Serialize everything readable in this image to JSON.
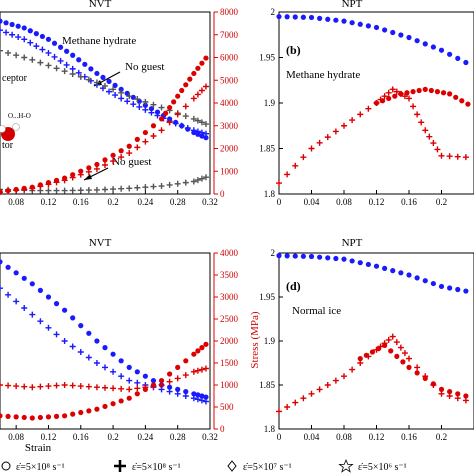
{
  "colors": {
    "blue": "#1a1aff",
    "red": "#dd0000",
    "gray": "#555555",
    "axis": "#000000"
  },
  "legend": [
    {
      "marker": "circle",
      "label": "ε̇=5×10⁸ s⁻¹"
    },
    {
      "marker": "plus",
      "label": "ε̇=5×10⁸ s⁻¹"
    },
    {
      "marker": "diamond",
      "label": "ε̇=5×10⁷ s⁻¹"
    },
    {
      "marker": "star",
      "label": "ε̇=5×10⁶ s⁻¹"
    }
  ],
  "chart_data": [
    {
      "type": "scatter",
      "title": "NVT",
      "xlim": [
        0.06,
        0.32
      ],
      "xticks": [
        "0.08",
        "0.12",
        "0.16",
        "0.2",
        "0.24",
        "0.28",
        "0.32"
      ],
      "y2label": "",
      "y2lim": [
        0,
        8000
      ],
      "y2ticks": [
        "0",
        "1000",
        "2000",
        "3000",
        "4000",
        "5000",
        "6000",
        "7000",
        "8000"
      ],
      "annotations": [
        "Methane hydrate",
        "No guest",
        "No guest",
        "ceptor",
        "tor",
        "O...H-O"
      ],
      "series": [
        {
          "color": "blue",
          "side": "left",
          "x": [
            0.06,
            0.09,
            0.12,
            0.15,
            0.18,
            0.21,
            0.24,
            0.27,
            0.3,
            0.32
          ],
          "y": [
            7600,
            7300,
            6800,
            6100,
            5300,
            4600,
            3900,
            3300,
            2700,
            2400
          ]
        },
        {
          "color": "blue",
          "side": "left",
          "x": [
            0.06,
            0.09,
            0.12,
            0.15,
            0.18,
            0.21,
            0.24,
            0.27,
            0.3,
            0.32
          ],
          "y": [
            7200,
            6800,
            6200,
            5500,
            4800,
            4200,
            3700,
            3200,
            2800,
            2600
          ]
        },
        {
          "color": "gray",
          "side": "left",
          "x": [
            0.06,
            0.1,
            0.14,
            0.18,
            0.22,
            0.26,
            0.3,
            0.32
          ],
          "y": [
            6300,
            5900,
            5400,
            4900,
            4300,
            3800,
            3300,
            3000
          ]
        },
        {
          "color": "gray",
          "side": "right",
          "x": [
            0.06,
            0.1,
            0.14,
            0.18,
            0.22,
            0.26,
            0.3,
            0.32
          ],
          "y": [
            200,
            150,
            150,
            180,
            250,
            350,
            550,
            800
          ]
        },
        {
          "color": "red",
          "side": "right",
          "x": [
            0.06,
            0.1,
            0.14,
            0.18,
            0.22,
            0.26,
            0.28,
            0.3,
            0.32
          ],
          "y": [
            100,
            300,
            700,
            1300,
            2100,
            3300,
            4300,
            5300,
            6200
          ]
        },
        {
          "color": "red",
          "side": "right",
          "x": [
            0.06,
            0.1,
            0.14,
            0.18,
            0.22,
            0.26,
            0.3,
            0.32
          ],
          "y": [
            80,
            250,
            600,
            1100,
            1800,
            2800,
            4200,
            4900
          ]
        }
      ]
    },
    {
      "type": "scatter",
      "title": "NPT",
      "label": "(b)",
      "xlim": [
        0,
        0.24
      ],
      "xticks": [
        "0",
        "0.04",
        "0.08",
        "0.12",
        "0.16",
        "0.2"
      ],
      "ylim": [
        1.8,
        2.0
      ],
      "yticks": [
        "1.8",
        "1.85",
        "1.9",
        "1.95",
        "2"
      ],
      "annotations": [
        "Methane hydrate"
      ],
      "series": [
        {
          "color": "blue",
          "x": [
            0,
            0.04,
            0.08,
            0.12,
            0.16,
            0.2,
            0.24
          ],
          "y": [
            1.995,
            1.994,
            1.99,
            1.983,
            1.972,
            1.958,
            1.94
          ]
        },
        {
          "color": "red",
          "x": [
            0,
            0.04,
            0.08,
            0.12,
            0.14,
            0.16,
            0.18,
            0.2,
            0.24
          ],
          "y": [
            1.812,
            1.85,
            1.875,
            1.9,
            1.915,
            1.905,
            1.87,
            1.842,
            1.84
          ]
        },
        {
          "color": "red",
          "x": [
            0.12,
            0.15,
            0.18,
            0.21,
            0.24
          ],
          "y": [
            1.9,
            1.91,
            1.915,
            1.91,
            1.895
          ]
        }
      ]
    },
    {
      "type": "scatter",
      "title": "NVT",
      "xlabel": "Strain",
      "xlim": [
        0.06,
        0.32
      ],
      "xticks": [
        "0.08",
        "0.12",
        "0.16",
        "0.2",
        "0.24",
        "0.28",
        "0.32"
      ],
      "y2label": "Stress (MPa)",
      "y2lim": [
        0,
        4000
      ],
      "y2ticks": [
        "0",
        "500",
        "1000",
        "1500",
        "2000",
        "2500",
        "3000",
        "3500",
        "4000"
      ],
      "series": [
        {
          "color": "blue",
          "side": "left",
          "x": [
            0.06,
            0.1,
            0.14,
            0.18,
            0.22,
            0.26,
            0.3,
            0.32
          ],
          "y": [
            3800,
            3300,
            2700,
            2000,
            1400,
            1000,
            800,
            700
          ]
        },
        {
          "color": "blue",
          "side": "left",
          "x": [
            0.06,
            0.1,
            0.14,
            0.18,
            0.22,
            0.26,
            0.3,
            0.32
          ],
          "y": [
            3200,
            2600,
            2000,
            1500,
            1100,
            900,
            700,
            600
          ]
        },
        {
          "color": "red",
          "side": "right",
          "x": [
            0.06,
            0.1,
            0.14,
            0.18,
            0.22,
            0.26,
            0.3,
            0.32
          ],
          "y": [
            300,
            250,
            300,
            450,
            700,
            1100,
            1700,
            2000
          ]
        },
        {
          "color": "red",
          "side": "right",
          "x": [
            0.06,
            0.1,
            0.14,
            0.18,
            0.22,
            0.26,
            0.3,
            0.32
          ],
          "y": [
            1000,
            950,
            1000,
            950,
            900,
            1000,
            1300,
            1400
          ]
        }
      ]
    },
    {
      "type": "scatter",
      "title": "NPT",
      "label": "(d)",
      "xlim": [
        0,
        0.24
      ],
      "xticks": [
        "0",
        "0.04",
        "0.08",
        "0.12",
        "0.16",
        "0.2"
      ],
      "ylim": [
        1.8,
        2.0
      ],
      "yticks": [
        "1.8",
        "1.85",
        "1.9",
        "1.95",
        "2"
      ],
      "annotations": [
        "Normal ice"
      ],
      "series": [
        {
          "color": "blue",
          "x": [
            0,
            0.04,
            0.08,
            0.12,
            0.16,
            0.2,
            0.24
          ],
          "y": [
            1.997,
            1.996,
            1.993,
            1.985,
            1.975,
            1.962,
            1.955
          ]
        },
        {
          "color": "red",
          "x": [
            0,
            0.04,
            0.08,
            0.12,
            0.14,
            0.16,
            0.2,
            0.24
          ],
          "y": [
            1.82,
            1.84,
            1.86,
            1.89,
            1.905,
            1.88,
            1.84,
            1.83
          ]
        },
        {
          "color": "red",
          "x": [
            0.1,
            0.13,
            0.16,
            0.2,
            0.24
          ],
          "y": [
            1.88,
            1.895,
            1.87,
            1.845,
            1.835
          ]
        }
      ]
    }
  ]
}
